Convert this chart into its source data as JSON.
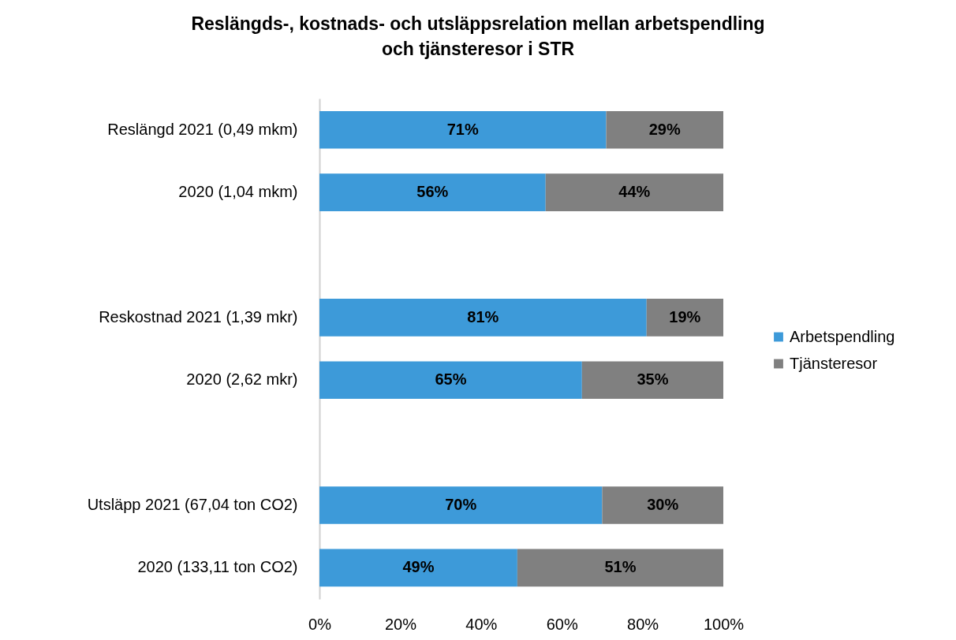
{
  "chart_data": {
    "type": "bar",
    "orientation": "horizontal",
    "stacked": true,
    "title": "Reslängds-, kostnads- och utsläppsrelation  mellan arbetspendling och tjänsteresor i STR",
    "categories": [
      "Reslängd 2021 (0,49 mkm)",
      "2020 (1,04 mkm)",
      null,
      "Reskostnad 2021 (1,39 mkr)",
      "2020 (2,62 mkr)",
      null,
      "Utsläpp 2021 (67,04 ton CO2)",
      "2020 (133,11 ton CO2)"
    ],
    "series": [
      {
        "name": "Arbetspendling",
        "color": "#3d9ad9",
        "values": [
          71,
          56,
          null,
          81,
          65,
          null,
          70,
          49
        ],
        "value_labels": [
          "71%",
          "56%",
          null,
          "81%",
          "65%",
          null,
          "70%",
          "49%"
        ]
      },
      {
        "name": "Tjänsteresor",
        "color": "#808080",
        "values": [
          29,
          44,
          null,
          19,
          35,
          null,
          30,
          51
        ],
        "value_labels": [
          "29%",
          "44%",
          null,
          "19%",
          "35%",
          null,
          "30%",
          "51%"
        ]
      }
    ],
    "xlim": [
      0,
      100
    ],
    "xticks": [
      {
        "value": 0,
        "label": "0%"
      },
      {
        "value": 20,
        "label": "20%"
      },
      {
        "value": 40,
        "label": "40%"
      },
      {
        "value": 60,
        "label": "60%"
      },
      {
        "value": 80,
        "label": "80%"
      },
      {
        "value": 100,
        "label": "100%"
      }
    ],
    "grid": false,
    "legend": "right"
  }
}
